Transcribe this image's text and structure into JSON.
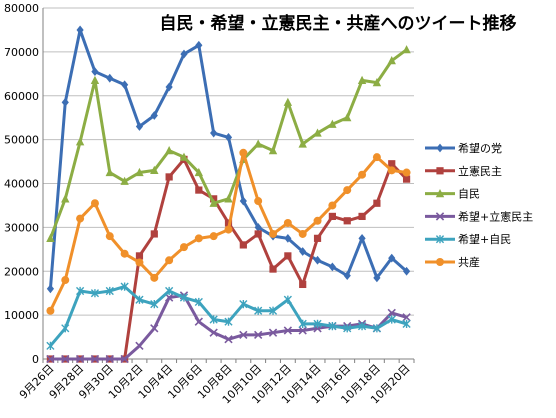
{
  "chart_data": {
    "type": "line",
    "title": "自民・希望・立憲民主・共産へのツイート推移",
    "xlabel": "",
    "ylabel": "",
    "ylim": [
      0,
      80000
    ],
    "yticks": [
      0,
      10000,
      20000,
      30000,
      40000,
      50000,
      60000,
      70000,
      80000
    ],
    "grid": true,
    "legend_position": "right",
    "x": [
      "9月26日",
      "9月27日",
      "9月28日",
      "9月29日",
      "9月30日",
      "10月1日",
      "10月2日",
      "10月3日",
      "10月4日",
      "10月5日",
      "10月6日",
      "10月7日",
      "10月8日",
      "10月9日",
      "10月10日",
      "10月11日",
      "10月12日",
      "10月13日",
      "10月14日",
      "10月15日",
      "10月16日",
      "10月17日",
      "10月18日",
      "10月19日",
      "10月20日"
    ],
    "xtick_labels": [
      "9月26日",
      "9月28日",
      "9月30日",
      "10月2日",
      "10月4日",
      "10月6日",
      "10月8日",
      "10月10日",
      "10月12日",
      "10月14日",
      "10月16日",
      "10月18日",
      "10月20日"
    ],
    "series": [
      {
        "name": "希望の党",
        "color": "#3c6eb4",
        "marker": "diamond",
        "values": [
          16000,
          58500,
          75000,
          65500,
          64000,
          62500,
          53000,
          55500,
          62000,
          69500,
          71500,
          51500,
          50500,
          36000,
          30000,
          28000,
          27500,
          24500,
          22500,
          21000,
          19000,
          27500,
          18500,
          23000,
          20000
        ]
      },
      {
        "name": "立憲民主",
        "color": "#b0413e",
        "marker": "square",
        "values": [
          0,
          0,
          0,
          0,
          0,
          0,
          23500,
          28500,
          41500,
          45500,
          38500,
          36500,
          31000,
          26000,
          28500,
          20500,
          23500,
          17000,
          27500,
          32500,
          31500,
          32500,
          35500,
          44500,
          41000
        ]
      },
      {
        "name": "自民",
        "color": "#8cad44",
        "marker": "triangle",
        "values": [
          27500,
          36500,
          49500,
          63500,
          42500,
          40500,
          42500,
          43000,
          47500,
          46000,
          42500,
          35500,
          36500,
          45500,
          49000,
          47500,
          58500,
          49000,
          51500,
          53500,
          55000,
          63500,
          63000,
          68000,
          70500
        ]
      },
      {
        "name": "希望+立憲民主",
        "color": "#7a5a9e",
        "marker": "x",
        "values": [
          0,
          0,
          0,
          0,
          0,
          0,
          3000,
          7000,
          14000,
          14500,
          8500,
          6000,
          4500,
          5500,
          5500,
          6000,
          6500,
          6500,
          7000,
          7500,
          7500,
          8000,
          7000,
          10500,
          9500
        ]
      },
      {
        "name": "希望+自民",
        "color": "#3da3be",
        "marker": "star",
        "values": [
          3000,
          7000,
          15500,
          15000,
          15500,
          16500,
          13500,
          12500,
          15500,
          14000,
          13000,
          9000,
          8500,
          12500,
          11000,
          11000,
          13500,
          8000,
          8000,
          7500,
          7000,
          7500,
          7000,
          9000,
          8000
        ]
      },
      {
        "name": "共産",
        "color": "#f0902a",
        "marker": "circle",
        "values": [
          11000,
          18000,
          32000,
          35500,
          28000,
          24000,
          22000,
          18500,
          22500,
          25500,
          27500,
          28000,
          29500,
          47000,
          36000,
          28500,
          31000,
          28500,
          31500,
          35000,
          38500,
          42000,
          46000,
          43000,
          42500
        ]
      }
    ]
  }
}
